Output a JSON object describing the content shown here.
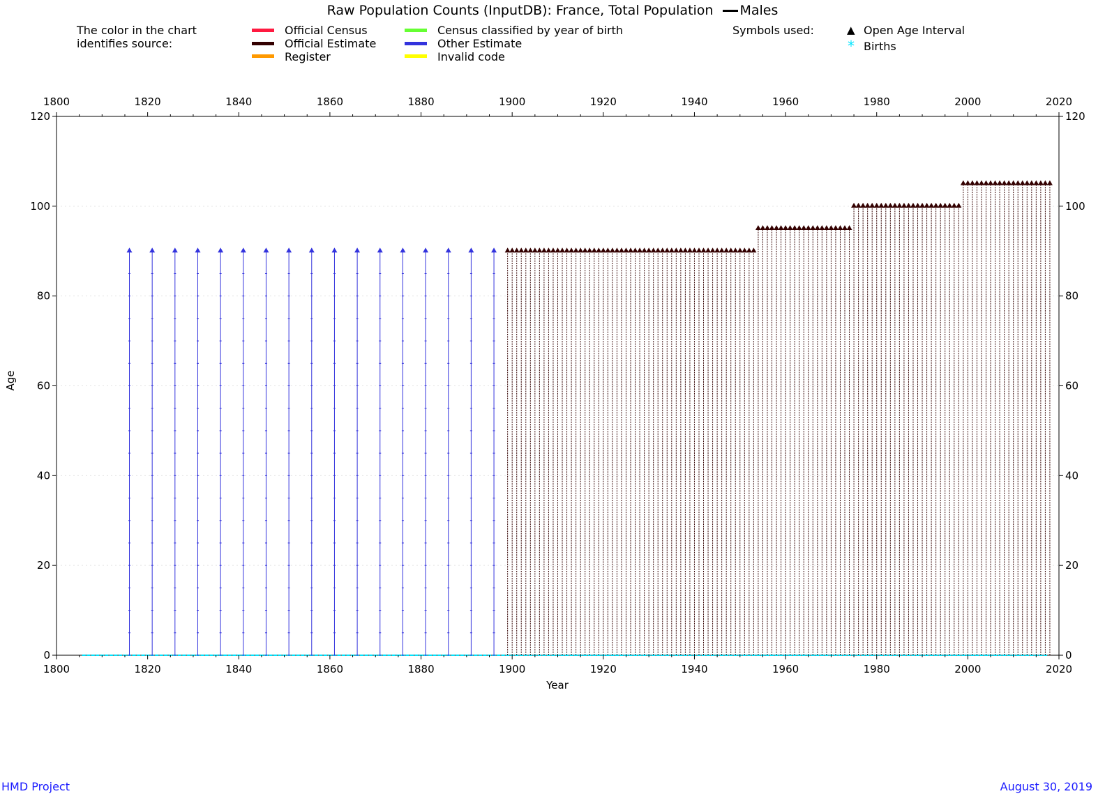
{
  "title": "Raw Population Counts (InputDB): France, Total Population",
  "title_series": "Males",
  "legend": {
    "intro_line1": "The color in the chart",
    "intro_line2": "identifies source:",
    "sources": [
      {
        "label": "Official Census",
        "color": "#ff1a40"
      },
      {
        "label": "Official Estimate",
        "color": "#330000"
      },
      {
        "label": "Register",
        "color": "#ff9900"
      },
      {
        "label": "Census classified by year of birth",
        "color": "#66ff33"
      },
      {
        "label": "Other Estimate",
        "color": "#3333dd"
      },
      {
        "label": "Invalid code",
        "color": "#ffff00"
      }
    ],
    "symbols_heading": "Symbols used:",
    "symbols": [
      {
        "label": "Open Age Interval",
        "glyph": "▲",
        "color": "#000000"
      },
      {
        "label": "Births",
        "glyph": "*",
        "color": "#00e5ff"
      }
    ]
  },
  "footer": {
    "left": "HMD Project",
    "right": "August 30, 2019"
  },
  "chart_data": {
    "type": "scatter",
    "xlabel": "Year",
    "ylabel": "Age",
    "xlim": [
      1800,
      2020
    ],
    "ylim": [
      0,
      120
    ],
    "x_ticks": [
      1800,
      1820,
      1840,
      1860,
      1880,
      1900,
      1920,
      1940,
      1960,
      1980,
      2000,
      2020
    ],
    "y_ticks": [
      0,
      20,
      40,
      60,
      80,
      100,
      120
    ],
    "grid": true,
    "series": [
      {
        "name": "Other Estimate",
        "color": "#3333dd",
        "x_start": 1816,
        "x_end": 1896,
        "x_step": 5,
        "open_age": 90,
        "age_step": 5
      },
      {
        "name": "Official Estimate",
        "color": "#330000",
        "segments": [
          {
            "x_start": 1899,
            "x_end": 1953,
            "open_age": 90
          },
          {
            "x_start": 1954,
            "x_end": 1974,
            "open_age": 95
          },
          {
            "x_start": 1975,
            "x_end": 1998,
            "open_age": 100
          },
          {
            "x_start": 1999,
            "x_end": 2018,
            "open_age": 105
          }
        ],
        "age_step": 1
      },
      {
        "name": "Births",
        "color": "#00e5ff",
        "x_start": 1806,
        "x_end": 2017,
        "age": 0
      }
    ]
  }
}
